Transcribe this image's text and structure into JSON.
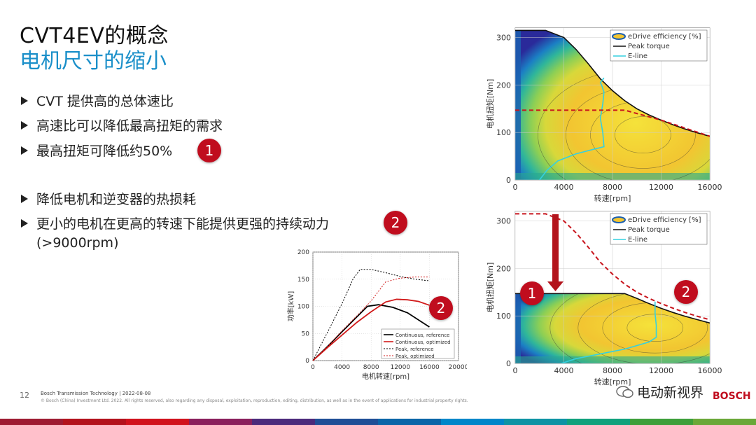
{
  "slide": {
    "title_line1": "CVT4EV的概念",
    "title_line2": "电机尺寸的缩小",
    "bullets": [
      "CVT 提供高的总体速比",
      "高速比可以降低最高扭矩的需求",
      "最高扭矩可降低约50%",
      "降低电机和逆变器的热损耗",
      "更小的电机在更高的转速下能提供更强的持续动力",
      "(>9000rpm)"
    ],
    "badge_1": "1",
    "badge_2": "2"
  },
  "footer": {
    "page_number": "12",
    "company_line": "Bosch Transmission Technology  | 2022-08-08",
    "copyright": "© Bosch (China) Investment Ltd. 2022. All rights reserved, also regarding any disposal, exploitation, reproduction, editing, distribution, as well as in the event of applications for industrial property rights.",
    "watermark": "电动新视界",
    "brand": "BOSCH"
  },
  "colors": {
    "accent_blue": "#1a8fc9",
    "bosch_red": "#c00d1e"
  },
  "chart_data": [
    {
      "type": "heatmap",
      "id": "map_reference",
      "xlabel": "转速[rpm]",
      "ylabel": "电机扭矩[Nm]",
      "xlim": [
        0,
        16000
      ],
      "ylim": [
        0,
        320
      ],
      "xticks": [
        0,
        4000,
        8000,
        12000,
        16000
      ],
      "yticks": [
        0,
        100,
        200,
        300
      ],
      "legend": [
        "eDrive efficiency [%]",
        "Peak torque",
        "E-line"
      ],
      "legend_position": "top-right",
      "peak_torque": {
        "x": [
          0,
          2500,
          4000,
          5000,
          6000,
          7000,
          8000,
          9000,
          10000,
          11000,
          12000,
          13000,
          14000,
          15000,
          16000
        ],
        "y": [
          315,
          315,
          300,
          275,
          245,
          213,
          188,
          167,
          150,
          137,
          126,
          116,
          107,
          99,
          92
        ]
      },
      "e_line": {
        "x": [
          2000,
          2600,
          3500,
          5000,
          6500,
          7300,
          7200,
          7000,
          7200,
          7300,
          7100,
          7000,
          7300
        ],
        "y": [
          0,
          20,
          40,
          55,
          65,
          70,
          100,
          130,
          160,
          185,
          200,
          205,
          215
        ]
      },
      "torque_limit_dashed": {
        "x": [
          0,
          9000,
          12000,
          16000
        ],
        "y": [
          147,
          147,
          126,
          92
        ]
      }
    },
    {
      "type": "line",
      "id": "power_curves",
      "xlabel": "电机转速[rpm]",
      "ylabel": "功率[kW]",
      "xlim": [
        0,
        20000
      ],
      "ylim": [
        0,
        200
      ],
      "xticks": [
        0,
        4000,
        8000,
        12000,
        16000,
        20000
      ],
      "yticks": [
        0,
        50,
        100,
        150,
        200
      ],
      "legend_position": "bottom-right",
      "series": [
        {
          "name": "Continuous, reference",
          "color": "#000000",
          "dash": "none",
          "x": [
            0,
            2000,
            4000,
            6000,
            7500,
            9000,
            11000,
            13000,
            16000
          ],
          "y": [
            0,
            26,
            53,
            80,
            100,
            103,
            98,
            88,
            62
          ]
        },
        {
          "name": "Continuous, optimized",
          "color": "#d11a1a",
          "dash": "none",
          "x": [
            0,
            2000,
            4000,
            6000,
            8000,
            10000,
            11500,
            13000,
            14500,
            16000
          ],
          "y": [
            0,
            24,
            47,
            70,
            90,
            108,
            113,
            112,
            109,
            102
          ]
        },
        {
          "name": "Peak, reference",
          "color": "#000000",
          "dash": "2,2",
          "x": [
            0,
            2000,
            4000,
            5500,
            6500,
            8000,
            10000,
            12000,
            14000,
            16000
          ],
          "y": [
            0,
            52,
            105,
            150,
            168,
            168,
            162,
            155,
            150,
            147
          ]
        },
        {
          "name": "Peak, optimized",
          "color": "#d11a1a",
          "dash": "2,2",
          "x": [
            0,
            2000,
            4000,
            6000,
            8000,
            10000,
            12000,
            14000,
            16000
          ],
          "y": [
            0,
            26,
            55,
            82,
            110,
            145,
            152,
            154,
            154
          ]
        }
      ]
    },
    {
      "type": "heatmap",
      "id": "map_optimized",
      "xlabel": "转速[rpm]",
      "ylabel": "电机扭矩[Nm]",
      "xlim": [
        0,
        16000
      ],
      "ylim": [
        0,
        320
      ],
      "xticks": [
        0,
        4000,
        8000,
        12000,
        16000
      ],
      "yticks": [
        0,
        100,
        200,
        300
      ],
      "legend": [
        "eDrive efficiency [%]",
        "Peak torque",
        "E-line"
      ],
      "legend_position": "top-right",
      "peak_torque": {
        "x": [
          0,
          9000,
          10000,
          11000,
          12000,
          13000,
          14000,
          15000,
          16000
        ],
        "y": [
          147,
          147,
          137,
          126,
          116,
          107,
          99,
          92,
          85
        ]
      },
      "e_line": {
        "x": [
          3800,
          5000,
          7000,
          9000,
          11000,
          11600,
          11600,
          11500,
          11500
        ],
        "y": [
          0,
          10,
          20,
          30,
          45,
          55,
          80,
          105,
          130
        ]
      },
      "reference_peak_dashed": {
        "x": [
          0,
          2500,
          4000,
          5000,
          6000,
          7000,
          8000,
          9000,
          10000,
          11000,
          12000,
          13000,
          14000,
          15000,
          16000
        ],
        "y": [
          315,
          315,
          300,
          275,
          245,
          213,
          188,
          167,
          150,
          137,
          126,
          116,
          107,
          99,
          92
        ]
      }
    }
  ]
}
